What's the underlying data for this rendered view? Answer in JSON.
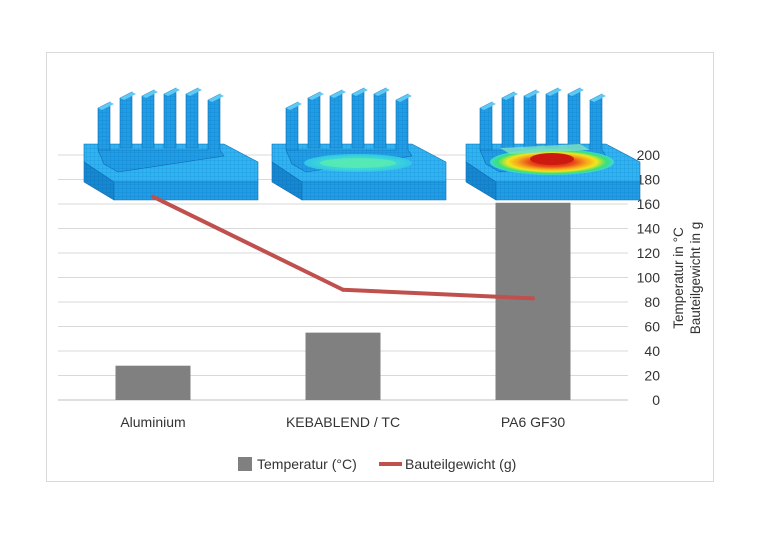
{
  "chart_data": {
    "type": "bar",
    "categories": [
      "Aluminium",
      "KEBABLEND / TC",
      "PA6 GF30"
    ],
    "series": [
      {
        "name": "Temperatur (°C)",
        "type": "bar",
        "color": "#808080",
        "values": [
          28,
          55,
          161
        ]
      },
      {
        "name": "Bauteilgewicht (g)",
        "type": "line",
        "color": "#c0504d",
        "values": [
          166,
          90,
          83
        ]
      }
    ],
    "ylim": [
      0,
      200
    ],
    "yticks": [
      0,
      20,
      40,
      60,
      80,
      100,
      120,
      140,
      160,
      180,
      200
    ],
    "ylabel_lines": [
      "Temperatur in °C",
      "Bauteilgewicht in g"
    ],
    "y_axis_side": "right",
    "grid": true,
    "legend": "bottom",
    "images": [
      {
        "icon": "heatsink-thermal-uniform-blue-icon"
      },
      {
        "icon": "heatsink-thermal-green-center-icon"
      },
      {
        "icon": "heatsink-thermal-red-hotspot-icon"
      }
    ]
  }
}
